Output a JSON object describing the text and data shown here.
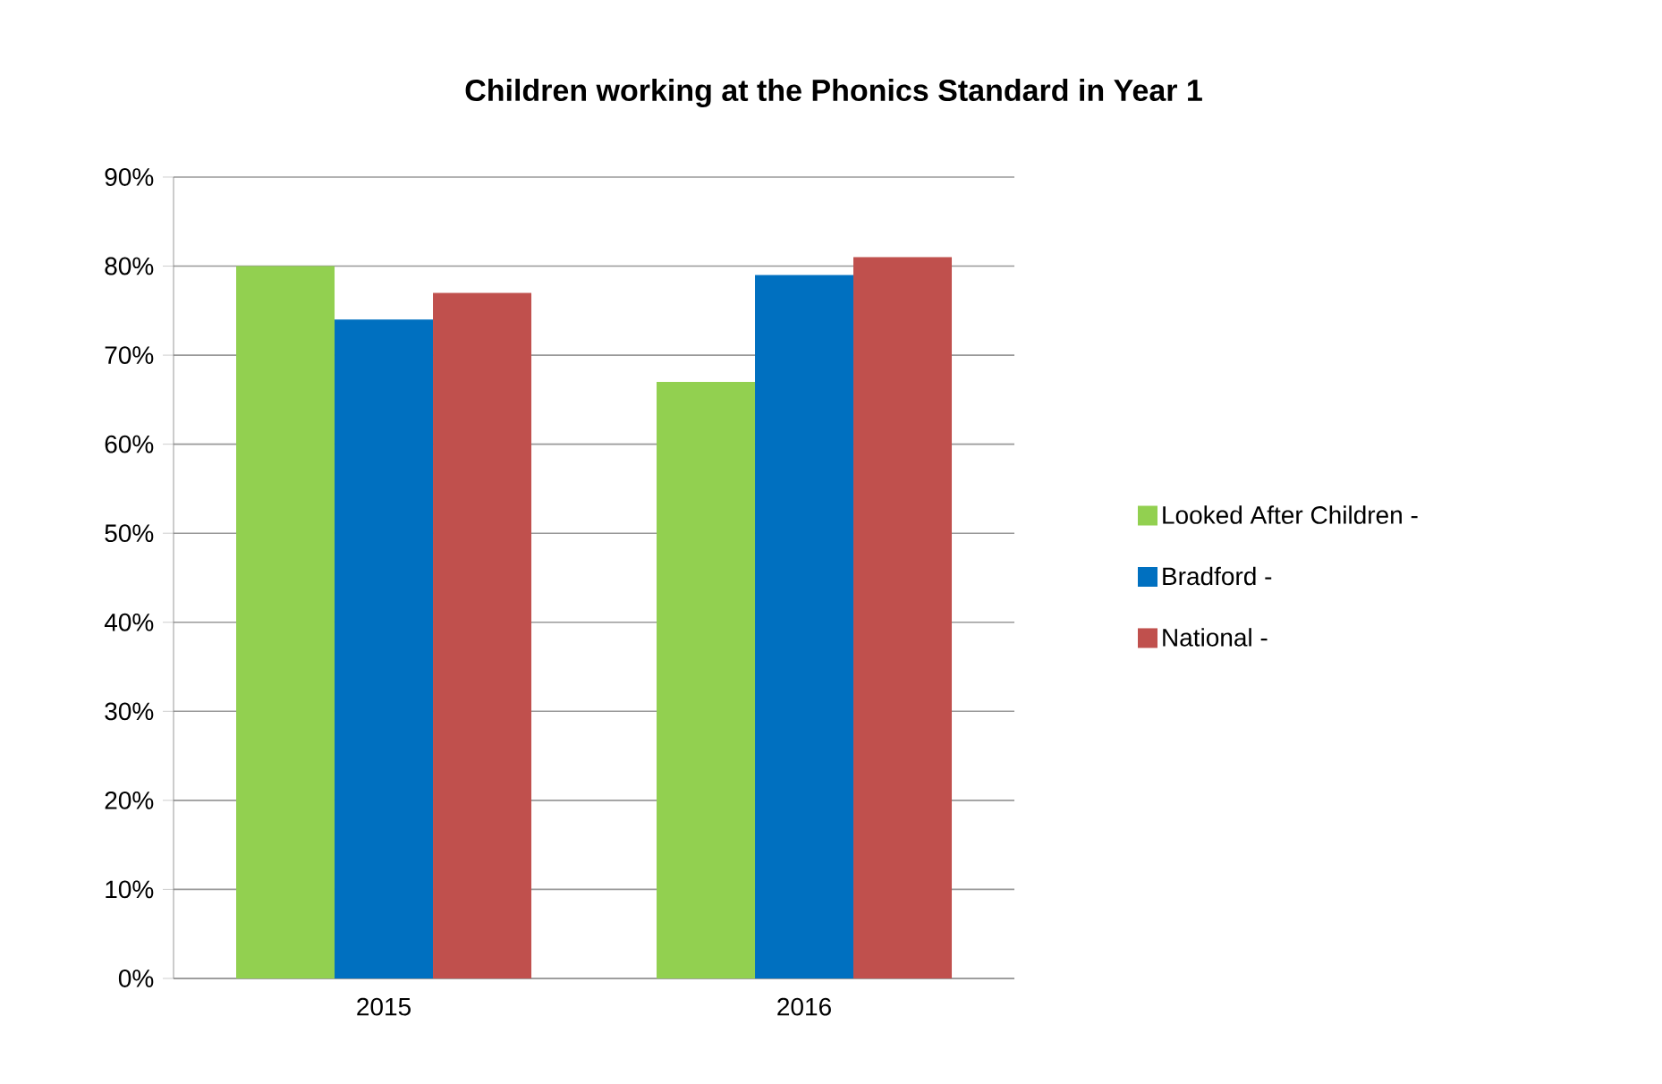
{
  "chart_data": {
    "type": "bar",
    "title": "Children working at the Phonics Standard in Year 1",
    "categories": [
      "2015",
      "2016"
    ],
    "series": [
      {
        "name": "Looked After Children  -",
        "color": "#92d050",
        "values": [
          80,
          67
        ]
      },
      {
        "name": "Bradford -",
        "color": "#0070c0",
        "values": [
          74,
          79
        ]
      },
      {
        "name": "National -",
        "color": "#c0504d",
        "values": [
          77,
          81
        ]
      }
    ],
    "ylim": [
      0,
      90
    ],
    "yticks": [
      {
        "value": 0,
        "label": "0%"
      },
      {
        "value": 10,
        "label": "10%"
      },
      {
        "value": 20,
        "label": "20%"
      },
      {
        "value": 30,
        "label": "30%"
      },
      {
        "value": 40,
        "label": "40%"
      },
      {
        "value": 50,
        "label": "50%"
      },
      {
        "value": 60,
        "label": "60%"
      },
      {
        "value": 70,
        "label": "70%"
      },
      {
        "value": 80,
        "label": "80%"
      },
      {
        "value": 90,
        "label": "90%"
      }
    ],
    "grid": "y",
    "legend": "right"
  }
}
